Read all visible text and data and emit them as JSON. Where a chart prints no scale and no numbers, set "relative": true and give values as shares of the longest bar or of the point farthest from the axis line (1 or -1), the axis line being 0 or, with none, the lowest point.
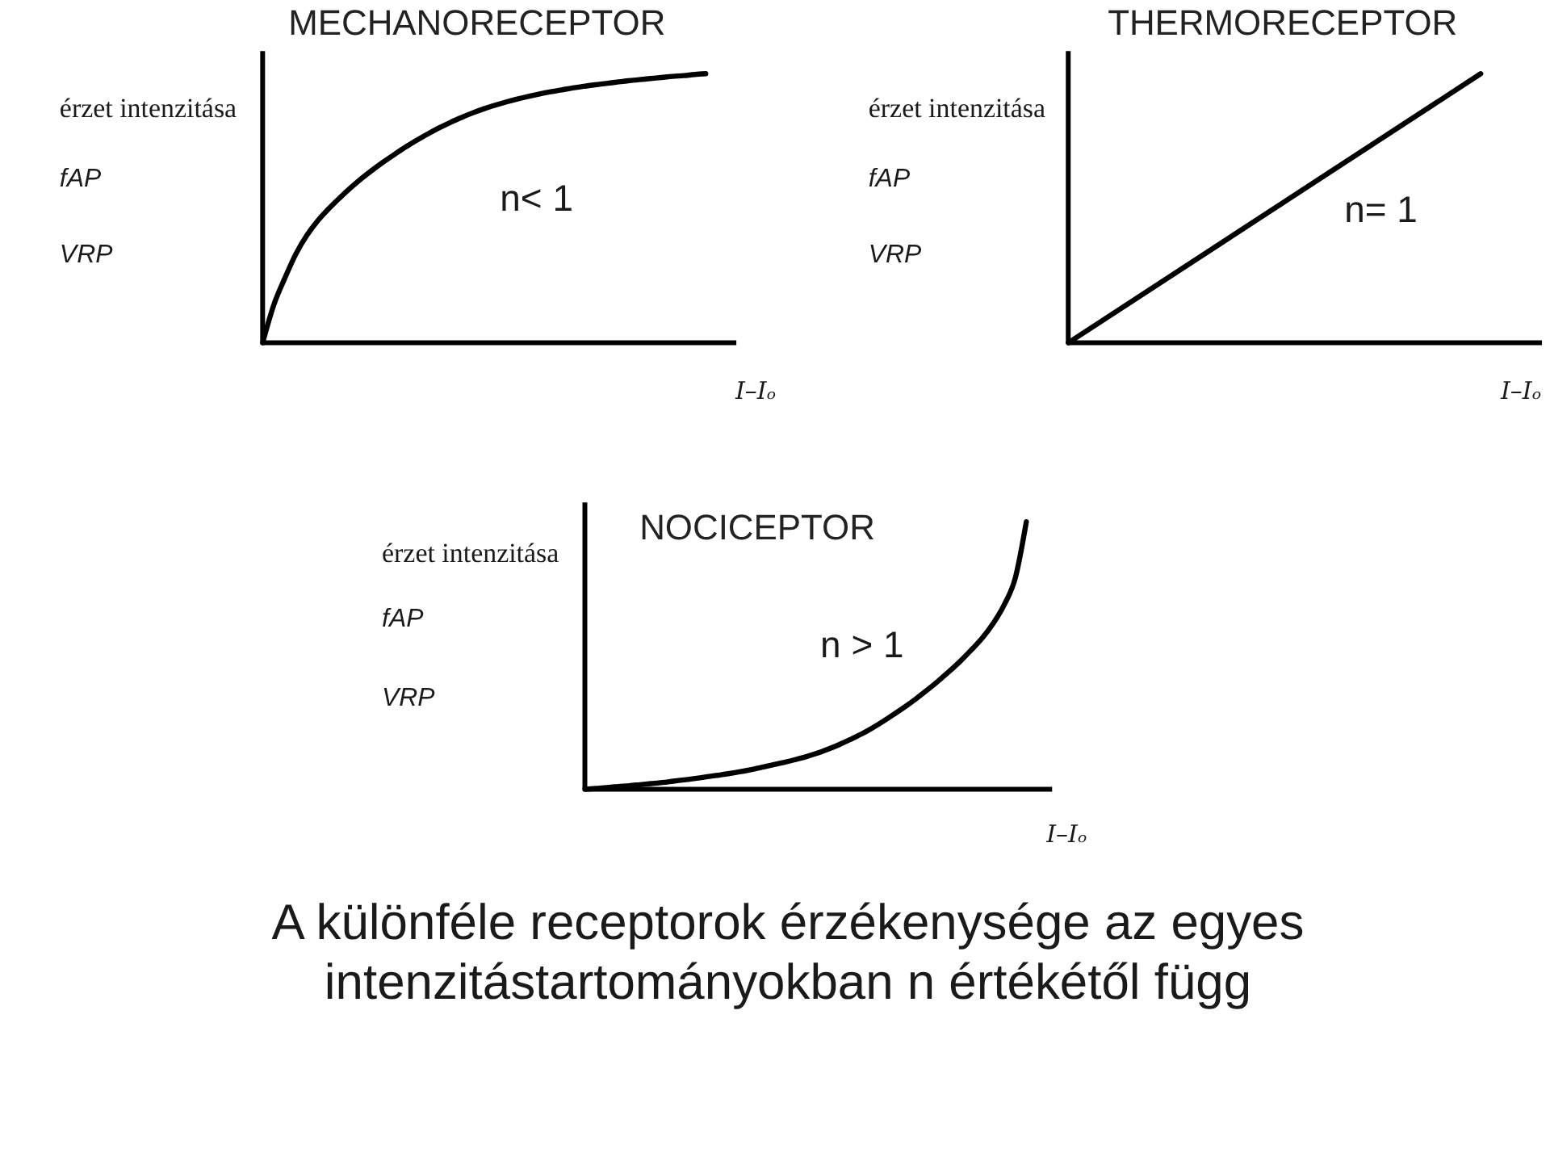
{
  "chart_data": [
    {
      "type": "line",
      "title": "MECHANORECEPTOR",
      "xlabel": "I–Iₒ",
      "ylabel": "érzet intenzitása\nfAP\nVRP",
      "relative": true,
      "categories": [
        null,
        null,
        null,
        null,
        null,
        null,
        null,
        null,
        null,
        null,
        null,
        null,
        null,
        null,
        null,
        null,
        null,
        null,
        null,
        null,
        null,
        null,
        null,
        null,
        null,
        null,
        null,
        null,
        null,
        null,
        null,
        null,
        null,
        null,
        null,
        null,
        null,
        null,
        null,
        null,
        null
      ],
      "series": [
        {
          "color": "#000000",
          "values": [
            0,
            0.14,
            0.24,
            0.33,
            0.4,
            0.455,
            0.5,
            0.54,
            0.578,
            0.613,
            0.645,
            0.675,
            0.703,
            0.73,
            0.755,
            0.778,
            0.8,
            0.82,
            0.838,
            0.855,
            0.87,
            0.883,
            0.895,
            0.906,
            0.916,
            0.925,
            0.933,
            0.94,
            0.947,
            0.953,
            0.959,
            0.964,
            0.969,
            0.974,
            0.978,
            0.982,
            0.986,
            0.99,
            0.993,
            0.997,
            1.0
          ]
        }
      ],
      "annotations": [
        "n< 1"
      ]
    },
    {
      "type": "line",
      "title": "THERMORECEPTOR",
      "xlabel": "I–Iₒ",
      "ylabel": "érzet intenzitása\nfAP\nVRP",
      "relative": true,
      "categories": [
        null,
        null
      ],
      "series": [
        {
          "color": "#000000",
          "values": [
            0,
            1.0
          ]
        }
      ],
      "annotations": [
        "n= 1"
      ]
    },
    {
      "type": "line",
      "title": "NOCICEPTOR",
      "xlabel": "I–Iₒ",
      "ylabel": "érzet intenzitása\nfAP\nVRP",
      "relative": true,
      "categories": [
        null,
        null,
        null,
        null,
        null,
        null,
        null,
        null,
        null,
        null,
        null,
        null,
        null,
        null,
        null,
        null,
        null,
        null,
        null,
        null,
        null,
        null,
        null,
        null,
        null,
        null,
        null,
        null,
        null,
        null,
        null,
        null,
        null,
        null,
        null,
        null,
        null,
        null,
        null,
        null,
        null
      ],
      "series": [
        {
          "color": "#000000",
          "values": [
            0,
            0.003,
            0.006,
            0.01,
            0.013,
            0.017,
            0.021,
            0.025,
            0.03,
            0.035,
            0.04,
            0.046,
            0.052,
            0.058,
            0.065,
            0.073,
            0.082,
            0.091,
            0.1,
            0.11,
            0.121,
            0.134,
            0.149,
            0.166,
            0.185,
            0.205,
            0.228,
            0.253,
            0.28,
            0.308,
            0.338,
            0.37,
            0.404,
            0.44,
            0.478,
            0.52,
            0.565,
            0.62,
            0.69,
            0.79,
            1.0
          ]
        }
      ],
      "annotations": [
        "n > 1",
        "A különféle receptorok érzékenysége az egyes\nintenzitástartományokban n értékétől függ"
      ]
    }
  ]
}
